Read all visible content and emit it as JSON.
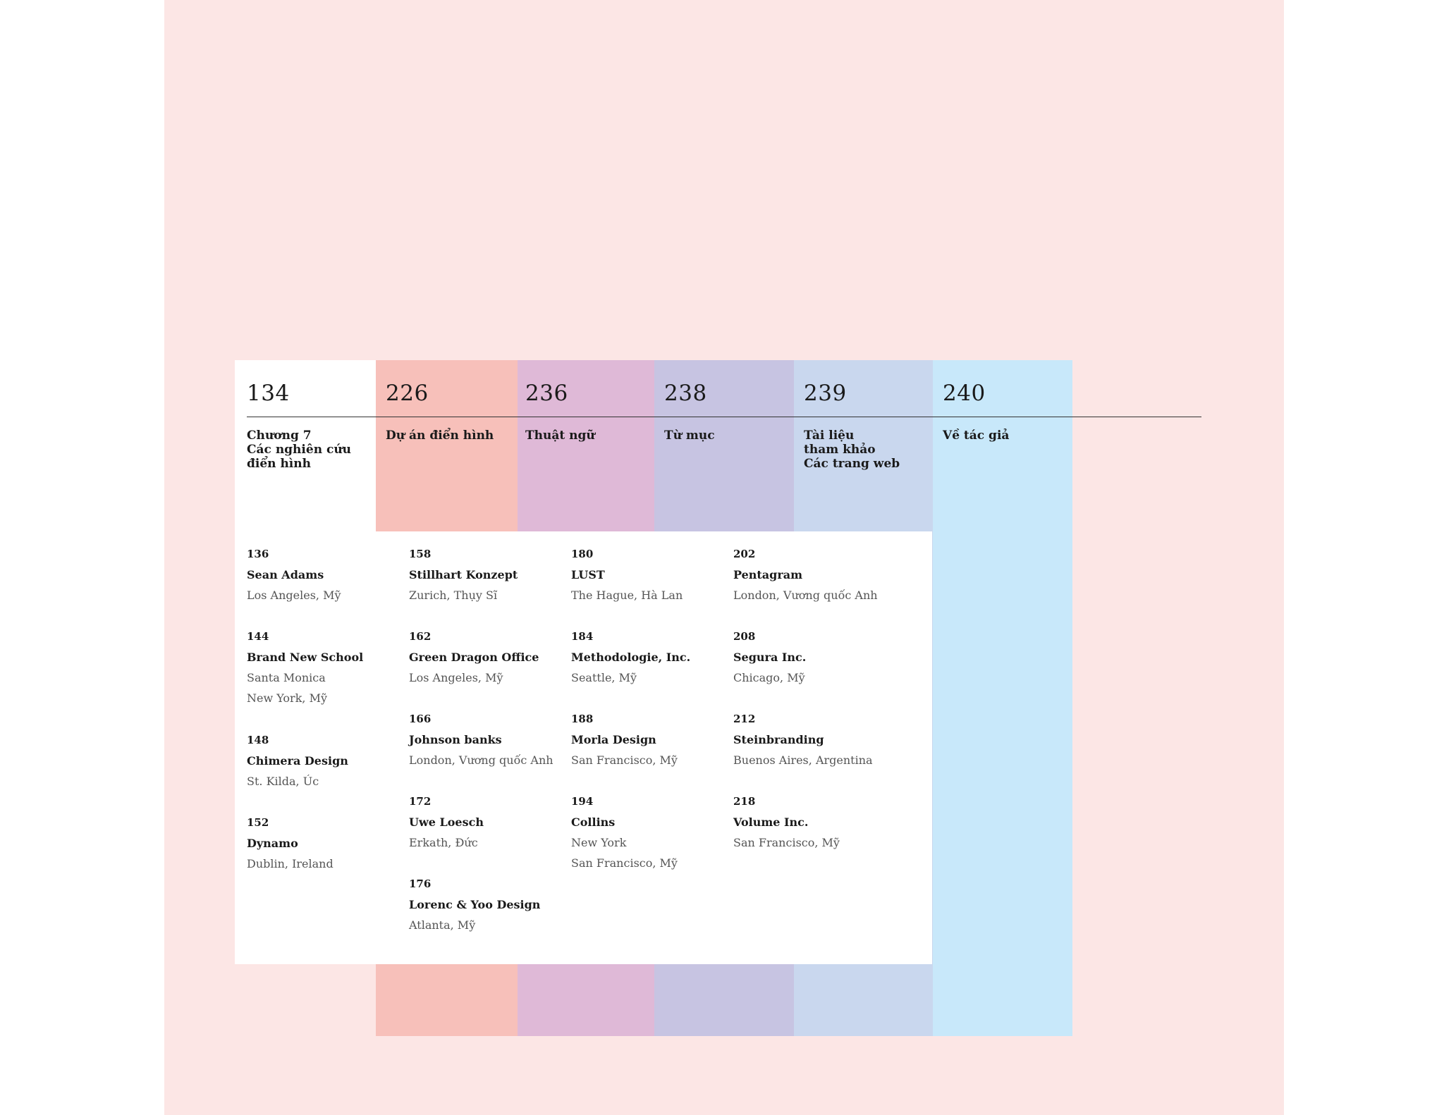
{
  "colors": {
    "page_background": "#fce6e5",
    "band_1": "#f7c0ba",
    "band_2": "#dfb9d7",
    "band_3": "#c7c4e2",
    "band_4": "#c9d7ee",
    "band_5": "#c8e8fa"
  },
  "sections": [
    {
      "number": "134",
      "title": "Chương 7\nCác nghiên cứu\nđiển hình"
    },
    {
      "number": "226",
      "title": "Dự án điển hình"
    },
    {
      "number": "236",
      "title": "Thuật ngữ"
    },
    {
      "number": "238",
      "title": "Từ mục"
    },
    {
      "number": "239",
      "title": "Tài liệu\ntham khảo\nCác trang web"
    },
    {
      "number": "240",
      "title": "Về tác giả"
    }
  ],
  "entries": [
    {
      "page": "136",
      "name": "Sean Adams",
      "location": "Los Angeles, Mỹ"
    },
    {
      "page": "144",
      "name": "Brand New School",
      "location": "Santa Monica\nNew York, Mỹ"
    },
    {
      "page": "148",
      "name": "Chimera Design",
      "location": "St. Kilda, Úc"
    },
    {
      "page": "152",
      "name": "Dynamo",
      "location": "Dublin, Ireland"
    },
    {
      "page": "158",
      "name": "Stillhart Konzept",
      "location": "Zurich, Thụy Sĩ"
    },
    {
      "page": "162",
      "name": "Green Dragon Office",
      "location": "Los Angeles, Mỹ"
    },
    {
      "page": "166",
      "name": "Johnson banks",
      "location": "London, Vương quốc Anh"
    },
    {
      "page": "172",
      "name": "Uwe Loesch",
      "location": "Erkath, Đức"
    },
    {
      "page": "176",
      "name": "Lorenc & Yoo Design",
      "location": "Atlanta, Mỹ"
    },
    {
      "page": "180",
      "name": "LUST",
      "location": "The Hague, Hà Lan"
    },
    {
      "page": "184",
      "name": "Methodologie, Inc.",
      "location": "Seattle, Mỹ"
    },
    {
      "page": "188",
      "name": "Morla Design",
      "location": "San Francisco, Mỹ"
    },
    {
      "page": "194",
      "name": "Collins",
      "location": "New York\nSan Francisco, Mỹ"
    },
    {
      "page": "202",
      "name": "Pentagram",
      "location": "London, Vương quốc Anh"
    },
    {
      "page": "208",
      "name": "Segura Inc.",
      "location": "Chicago, Mỹ"
    },
    {
      "page": "212",
      "name": "Steinbranding",
      "location": "Buenos Aires, Argentina"
    },
    {
      "page": "218",
      "name": "Volume Inc.",
      "location": "San Francisco, Mỹ"
    }
  ]
}
